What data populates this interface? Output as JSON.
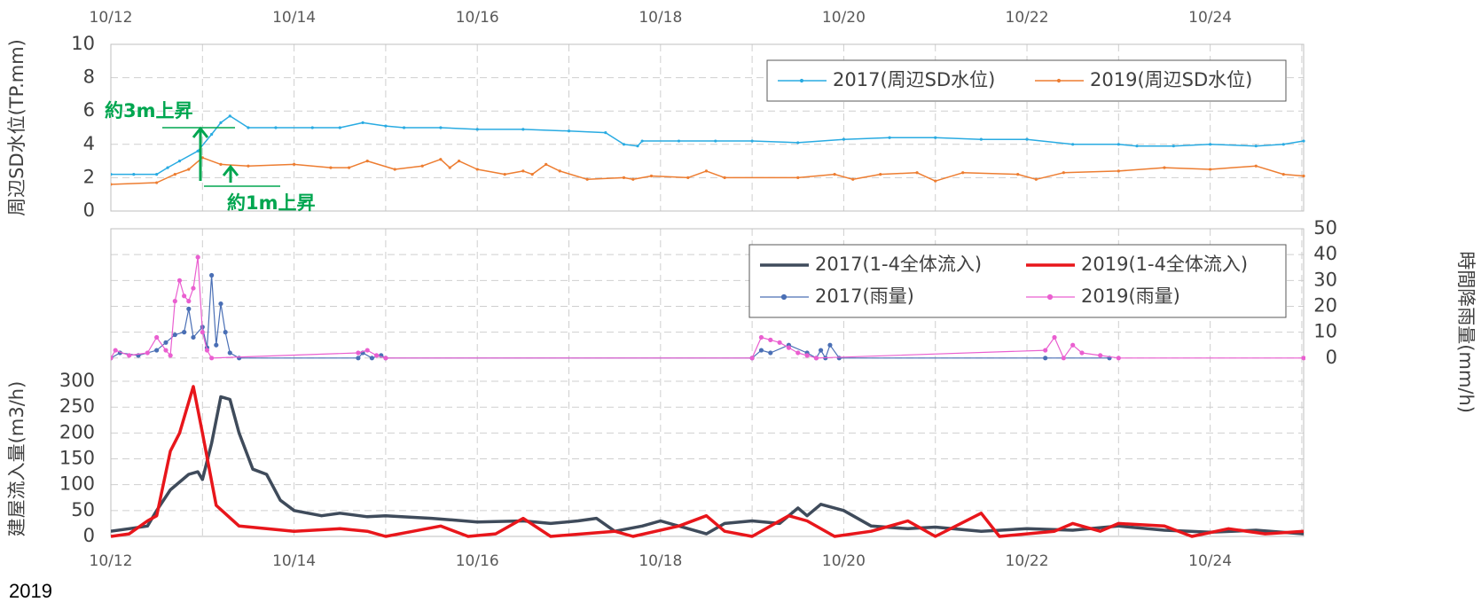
{
  "chart_data": [
    {
      "type": "line",
      "ylabel": "周辺SD水位(TP.mm)",
      "xlim": [
        12,
        25.02
      ],
      "xticks": [
        {
          "value": 12,
          "label": "10/12"
        },
        {
          "value": 14,
          "label": "10/14"
        },
        {
          "value": 16,
          "label": "10/16"
        },
        {
          "value": 18,
          "label": "10/18"
        },
        {
          "value": 20,
          "label": "10/20"
        },
        {
          "value": 22,
          "label": "10/22"
        },
        {
          "value": 24,
          "label": "10/24"
        }
      ],
      "xtick_position": "top",
      "xgrid": [
        12,
        13,
        14,
        15,
        16,
        17,
        18,
        19,
        20,
        21,
        22,
        23,
        24,
        25
      ],
      "ylim": [
        0,
        10
      ],
      "yticks": [
        0,
        2,
        4,
        6,
        8,
        10
      ],
      "grid": true,
      "legend": "upper-right",
      "legend_columns": 2,
      "series": [
        {
          "name": "2017(周辺SD水位)",
          "color": "#29abe2",
          "line_width": 1.5,
          "marker_size": 1.6,
          "x": [
            12,
            12.25,
            12.5,
            12.62,
            12.75,
            12.95,
            13.1,
            13.2,
            13.3,
            13.5,
            13.8,
            14.2,
            14.5,
            14.75,
            15,
            15.2,
            15.6,
            16,
            16.5,
            17,
            17.4,
            17.6,
            17.75,
            17.8,
            18.2,
            18.6,
            19,
            19.5,
            20,
            20.5,
            21,
            21.5,
            22,
            22.5,
            23,
            23.2,
            23.6,
            24,
            24.5,
            24.8,
            25.02
          ],
          "values": [
            2.2,
            2.2,
            2.2,
            2.6,
            3.0,
            3.6,
            4.6,
            5.3,
            5.7,
            5.0,
            5.0,
            5.0,
            5.0,
            5.3,
            5.1,
            5.0,
            5.0,
            4.9,
            4.9,
            4.8,
            4.7,
            4.0,
            3.9,
            4.2,
            4.2,
            4.2,
            4.2,
            4.1,
            4.3,
            4.4,
            4.4,
            4.3,
            4.3,
            4.0,
            4.0,
            3.9,
            3.9,
            4.0,
            3.9,
            4.0,
            4.2
          ]
        },
        {
          "name": "2019(周辺SD水位)",
          "color": "#ed7d31",
          "line_width": 1.5,
          "marker_size": 1.6,
          "x": [
            12,
            12.5,
            12.7,
            12.85,
            13,
            13.2,
            13.5,
            14,
            14.4,
            14.6,
            14.8,
            15.1,
            15.4,
            15.6,
            15.7,
            15.8,
            16,
            16.3,
            16.5,
            16.6,
            16.75,
            16.9,
            17.2,
            17.6,
            17.7,
            17.9,
            18.3,
            18.5,
            18.7,
            19.5,
            19.9,
            20.1,
            20.4,
            20.8,
            21,
            21.3,
            21.9,
            22.1,
            22.4,
            23,
            23.5,
            24,
            24.5,
            24.8,
            25.02
          ],
          "values": [
            1.6,
            1.7,
            2.2,
            2.5,
            3.2,
            2.8,
            2.7,
            2.8,
            2.6,
            2.6,
            3.0,
            2.5,
            2.7,
            3.1,
            2.6,
            3.0,
            2.5,
            2.2,
            2.4,
            2.2,
            2.8,
            2.4,
            1.9,
            2.0,
            1.9,
            2.1,
            2.0,
            2.4,
            2.0,
            2.0,
            2.2,
            1.9,
            2.2,
            2.3,
            1.8,
            2.3,
            2.2,
            1.9,
            2.3,
            2.4,
            2.6,
            2.5,
            2.7,
            2.2,
            2.1
          ]
        }
      ],
      "annotations": [
        "約3m上昇",
        "約1m上昇"
      ],
      "annotation_color": "#00a650"
    },
    {
      "type": "line",
      "ylabel": "建屋流入量(m3/h)",
      "y2label": "時間降雨量(mm/h)",
      "xlim": [
        12,
        25.02
      ],
      "xticks": [
        {
          "value": 12,
          "label": "10/12"
        },
        {
          "value": 14,
          "label": "10/14"
        },
        {
          "value": 16,
          "label": "10/16"
        },
        {
          "value": 18,
          "label": "10/18"
        },
        {
          "value": 20,
          "label": "10/20"
        },
        {
          "value": 22,
          "label": "10/22"
        },
        {
          "value": 24,
          "label": "10/24"
        }
      ],
      "xtick_position": "bottom",
      "xgrid": [
        12,
        13,
        14,
        15,
        16,
        17,
        18,
        19,
        20,
        21,
        22,
        23,
        24,
        25
      ],
      "ylim": [
        0,
        595
      ],
      "yticks": [
        0,
        50,
        100,
        150,
        200,
        250,
        300
      ],
      "y2lim": [
        -69,
        50
      ],
      "y2ticks": [
        0,
        10,
        20,
        30,
        40,
        50
      ],
      "grid": true,
      "legend": "upper-right",
      "legend_columns": 2,
      "series": [
        {
          "name": "2017(1-4全体流入)",
          "color": "#3f4b5b",
          "line_width": 3.5,
          "marker_size": 0,
          "x": [
            12,
            12.2,
            12.4,
            12.5,
            12.65,
            12.85,
            12.95,
            13,
            13.1,
            13.2,
            13.3,
            13.4,
            13.55,
            13.7,
            13.85,
            14,
            14.3,
            14.5,
            14.8,
            15,
            15.5,
            16,
            16.5,
            16.8,
            17.1,
            17.3,
            17.5,
            17.8,
            18,
            18.5,
            18.7,
            19,
            19.3,
            19.5,
            19.6,
            19.75,
            20,
            20.3,
            20.7,
            21,
            21.5,
            22,
            22.5,
            23,
            23.5,
            24,
            24.5,
            25.02
          ],
          "values": [
            10,
            15,
            20,
            50,
            90,
            120,
            125,
            110,
            180,
            270,
            265,
            200,
            130,
            120,
            70,
            50,
            40,
            45,
            38,
            40,
            35,
            28,
            30,
            25,
            30,
            35,
            10,
            20,
            30,
            5,
            25,
            30,
            25,
            55,
            40,
            62,
            50,
            20,
            15,
            18,
            10,
            15,
            12,
            20,
            12,
            8,
            12,
            5
          ]
        },
        {
          "name": "2019(1-4全体流入)",
          "color": "#e8161b",
          "line_width": 3.5,
          "marker_size": 0,
          "x": [
            12,
            12.2,
            12.4,
            12.5,
            12.65,
            12.75,
            12.9,
            13,
            13.15,
            13.4,
            13.7,
            14,
            14.5,
            14.8,
            15,
            15.3,
            15.6,
            15.9,
            16.2,
            16.5,
            16.8,
            17.5,
            17.7,
            18.2,
            18.5,
            18.7,
            19,
            19.4,
            19.6,
            19.9,
            20.3,
            20.7,
            21,
            21.5,
            21.7,
            22.3,
            22.5,
            22.8,
            23,
            23.5,
            23.8,
            24.2,
            24.6,
            25.02
          ],
          "values": [
            0,
            5,
            30,
            40,
            165,
            200,
            290,
            200,
            60,
            20,
            15,
            10,
            15,
            10,
            0,
            10,
            20,
            0,
            5,
            35,
            0,
            10,
            0,
            20,
            40,
            10,
            0,
            40,
            30,
            0,
            10,
            30,
            0,
            45,
            0,
            10,
            25,
            10,
            25,
            20,
            0,
            15,
            5,
            10
          ]
        },
        {
          "name": "2017(雨量)",
          "color": "#4a6fb5",
          "line_width": 1.2,
          "marker_size": 2.6,
          "axis": "y2",
          "x": [
            12,
            12.1,
            12.3,
            12.5,
            12.6,
            12.7,
            12.8,
            12.85,
            12.9,
            13,
            13.05,
            13.1,
            13.15,
            13.2,
            13.25,
            13.3,
            13.4,
            14.7,
            14.75,
            14.85,
            14.95,
            15,
            19,
            19.1,
            19.2,
            19.4,
            19.6,
            19.7,
            19.75,
            19.8,
            19.85,
            19.95,
            22.2,
            22.9
          ],
          "values": [
            0,
            2,
            1,
            3,
            6,
            9,
            10,
            19,
            8,
            12,
            4,
            32,
            5,
            21,
            10,
            2,
            0,
            0,
            2,
            0,
            1,
            0,
            0,
            3,
            2,
            5,
            2,
            0,
            3,
            0,
            5,
            0,
            0,
            0
          ]
        },
        {
          "name": "2019(雨量)",
          "color": "#ea5fd0",
          "line_width": 1.2,
          "marker_size": 2.6,
          "axis": "y2",
          "x": [
            12,
            12.05,
            12.2,
            12.4,
            12.5,
            12.6,
            12.65,
            12.7,
            12.75,
            12.8,
            12.85,
            12.9,
            12.95,
            13,
            13.05,
            13.1,
            14.7,
            14.8,
            14.9,
            15,
            19,
            19.1,
            19.2,
            19.3,
            19.4,
            19.5,
            19.6,
            19.7,
            22.2,
            22.3,
            22.4,
            22.5,
            22.6,
            22.8,
            23,
            25.02
          ],
          "values": [
            0,
            3,
            1,
            2,
            8,
            3,
            1,
            22,
            30,
            24,
            22,
            27,
            39,
            10,
            3,
            0,
            2,
            3,
            1,
            0,
            0,
            8,
            7,
            6,
            4,
            2,
            1,
            0,
            3,
            8,
            0,
            5,
            2,
            1,
            0,
            0
          ]
        }
      ]
    }
  ],
  "footnote": "2019"
}
